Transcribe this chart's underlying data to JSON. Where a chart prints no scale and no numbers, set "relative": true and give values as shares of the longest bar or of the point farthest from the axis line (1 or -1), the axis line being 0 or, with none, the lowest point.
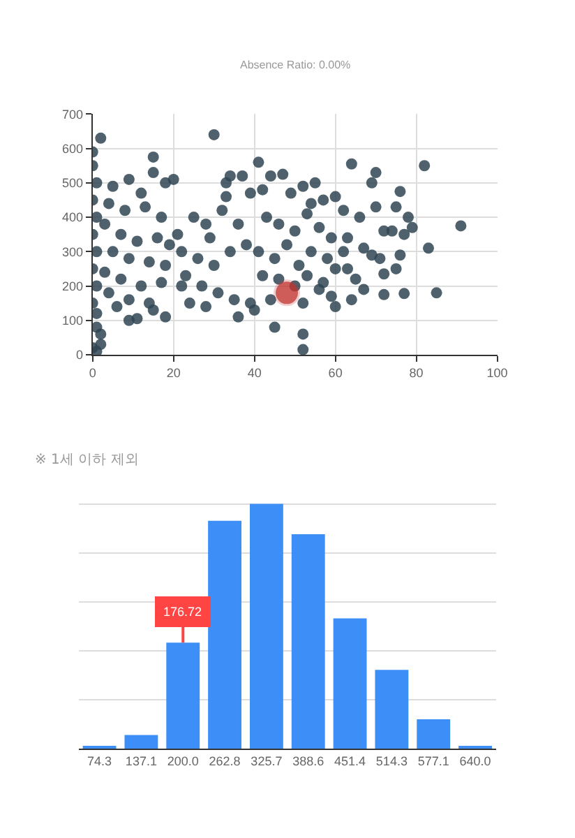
{
  "chart_data": [
    {
      "type": "scatter",
      "title": "Absence Ratio: 0.00%",
      "marker": "circle",
      "grid": true,
      "xlim": [
        0,
        100
      ],
      "xticks": [
        0,
        20,
        40,
        60,
        80,
        100
      ],
      "ylim": [
        0,
        700
      ],
      "yticks": [
        0,
        100,
        200,
        300,
        400,
        500,
        600,
        700
      ],
      "series": [
        {
          "color": "#2f4554",
          "x": [
            0,
            0,
            1,
            0,
            1,
            0,
            1,
            0,
            1,
            0,
            1,
            2,
            1,
            1,
            2,
            2,
            0,
            5,
            9,
            15,
            15,
            12,
            18,
            20,
            4,
            8,
            13,
            17,
            3,
            7,
            11,
            16,
            19,
            5,
            9,
            14,
            18,
            3,
            7,
            12,
            17,
            4,
            9,
            14,
            18,
            9,
            11,
            6,
            15,
            30,
            34,
            37,
            33,
            25,
            28,
            32,
            36,
            22,
            26,
            30,
            34,
            38,
            23,
            27,
            31,
            35,
            39,
            24,
            36,
            21,
            29,
            33,
            39,
            22,
            28,
            41,
            44,
            47,
            42,
            49,
            52,
            55,
            54,
            57,
            60,
            43,
            46,
            50,
            53,
            56,
            59,
            41,
            45,
            48,
            51,
            54,
            58,
            60,
            42,
            46,
            50,
            53,
            56,
            59,
            44,
            52,
            60,
            45,
            52,
            52,
            40,
            57,
            64,
            70,
            69,
            76,
            62,
            66,
            70,
            72,
            75,
            78,
            79,
            63,
            67,
            69,
            71,
            74,
            77,
            63,
            65,
            67,
            72,
            75,
            64,
            72,
            77,
            62,
            76,
            82,
            91,
            83,
            85
          ],
          "values": [
            590,
            550,
            500,
            450,
            400,
            350,
            300,
            250,
            200,
            150,
            120,
            630,
            80,
            10,
            60,
            30,
            20,
            490,
            510,
            575,
            530,
            470,
            500,
            510,
            440,
            420,
            430,
            400,
            380,
            350,
            330,
            340,
            320,
            300,
            280,
            270,
            260,
            240,
            220,
            200,
            210,
            180,
            160,
            150,
            110,
            100,
            105,
            140,
            130,
            640,
            520,
            520,
            500,
            400,
            380,
            420,
            380,
            300,
            280,
            260,
            300,
            320,
            230,
            200,
            180,
            160,
            150,
            150,
            110,
            350,
            340,
            460,
            470,
            200,
            140,
            560,
            520,
            525,
            480,
            470,
            490,
            500,
            440,
            450,
            460,
            400,
            380,
            360,
            410,
            370,
            340,
            300,
            280,
            320,
            260,
            300,
            280,
            250,
            230,
            220,
            200,
            230,
            190,
            170,
            160,
            150,
            140,
            80,
            60,
            15,
            130,
            210,
            555,
            530,
            500,
            475,
            420,
            400,
            430,
            360,
            430,
            400,
            370,
            340,
            310,
            290,
            280,
            360,
            350,
            250,
            220,
            190,
            235,
            250,
            160,
            175,
            178,
            300,
            290,
            550,
            375,
            310,
            180
          ]
        },
        {
          "color": "#c23531",
          "x": [
            48
          ],
          "values": [
            180
          ]
        }
      ]
    },
    {
      "type": "bar",
      "subtitle": "※ 1세 이하 제외",
      "relative": true,
      "grid": "y",
      "color": "#3d8ef7",
      "categories": [
        "74.3",
        "137.1",
        "200.0",
        "262.8",
        "325.7",
        "388.6",
        "451.4",
        "514.3",
        "577.1",
        "640.0"
      ],
      "values": [
        0.011,
        0.056,
        0.433,
        0.931,
        1,
        0.876,
        0.532,
        0.322,
        0.12,
        0.009
      ],
      "annotations": [
        {
          "text": "176.72",
          "x": "200.0",
          "y": 0.433
        }
      ]
    }
  ]
}
